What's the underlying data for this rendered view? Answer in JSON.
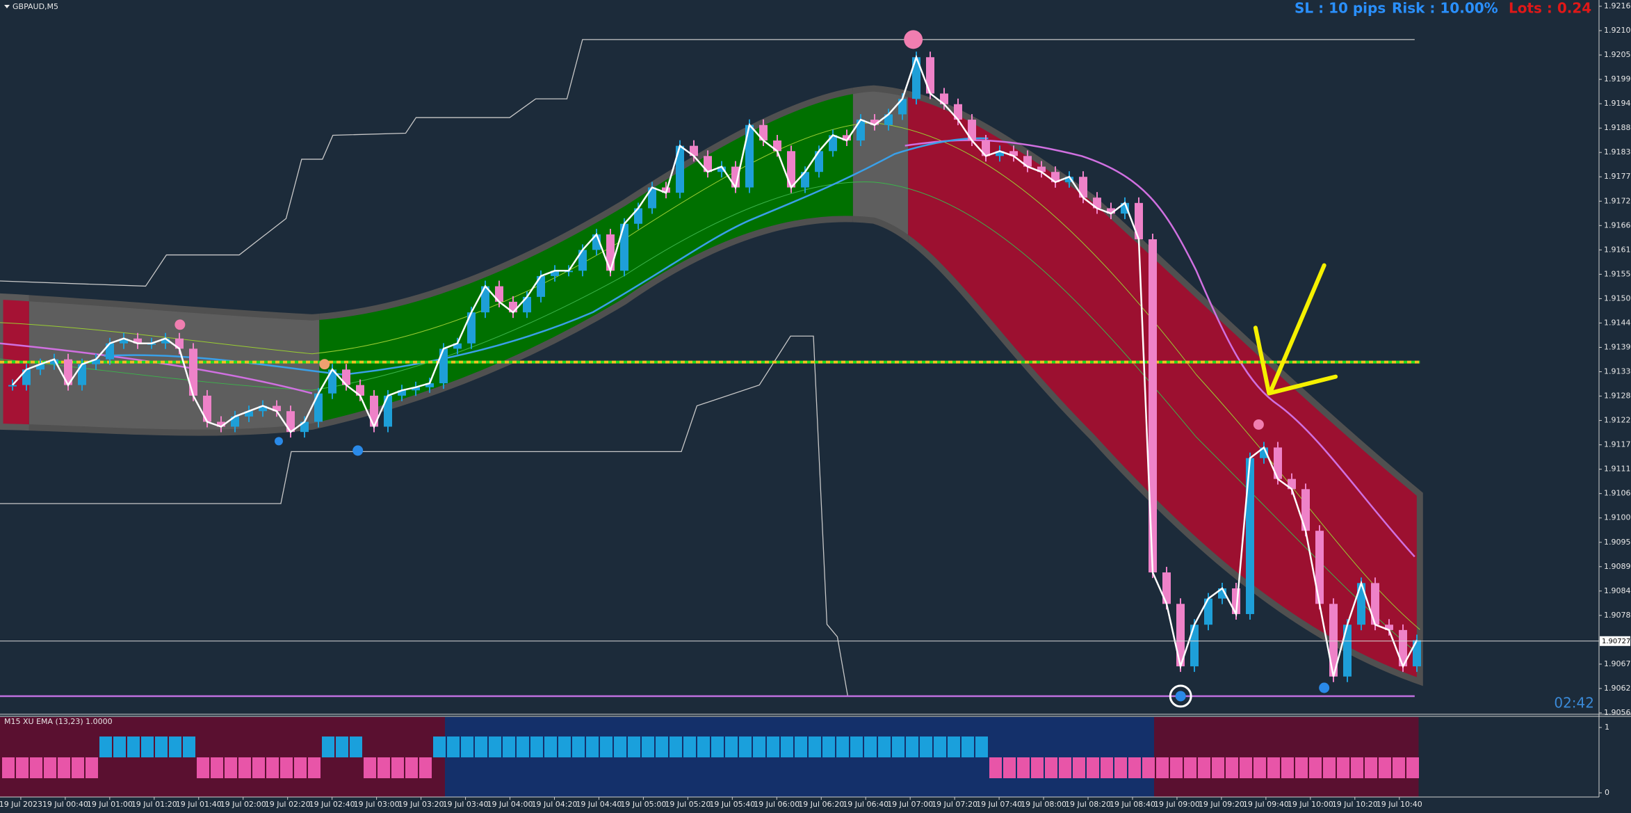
{
  "chart_data": {
    "type": "candlestick",
    "title": "GBPAUD,M5",
    "up_color": "#1e9fd8",
    "down_color": "#ee82c8",
    "values": [
      1.91305,
      1.9134,
      1.91352,
      1.91363,
      1.91305,
      1.91352,
      1.91363,
      1.91399,
      1.9141,
      1.91399,
      1.91399,
      1.9141,
      1.91387,
      1.91281,
      1.91222,
      1.91211,
      1.91234,
      1.91246,
      1.91258,
      1.91246,
      1.91199,
      1.91222,
      1.91286,
      1.9134,
      1.91305,
      1.91281,
      1.91211,
      1.91281,
      1.91293,
      1.913,
      1.91309,
      1.91387,
      1.91399,
      1.91469,
      1.91528,
      1.91493,
      1.91469,
      1.91504,
      1.91551,
      1.91563,
      1.91563,
      1.9161,
      1.91645,
      1.91563,
      1.91669,
      1.91704,
      1.91751,
      1.91739,
      1.91845,
      1.91822,
      1.91786,
      1.91798,
      1.91751,
      1.91892,
      1.91857,
      1.91833,
      1.91751,
      1.91786,
      1.91833,
      1.91869,
      1.91857,
      1.91904,
      1.91892,
      1.91916,
      1.91951,
      1.92045,
      1.91963,
      1.91939,
      1.91904,
      1.91857,
      1.91822,
      1.91833,
      1.91822,
      1.91798,
      1.91786,
      1.91763,
      1.91775,
      1.91728,
      1.91704,
      1.91692,
      1.91716,
      1.91634,
      1.90882,
      1.90811,
      1.9067,
      1.90764,
      1.90823,
      1.90846,
      1.90788,
      1.9114,
      1.91164,
      1.91093,
      1.9107,
      1.90976,
      1.90811,
      1.90647,
      1.90764,
      1.90858,
      1.90764,
      1.90752,
      1.9067,
      1.90729
    ],
    "ylim": [
      1.90565,
      1.9216
    ],
    "yticks": [
      {
        "value": 1.9216,
        "label": "1.92160"
      },
      {
        "value": 1.92105,
        "label": "1.92105"
      },
      {
        "value": 1.9205,
        "label": "1.92050"
      },
      {
        "value": 1.91995,
        "label": "1.91995"
      },
      {
        "value": 1.9194,
        "label": "1.91940"
      },
      {
        "value": 1.91885,
        "label": "1.91885"
      },
      {
        "value": 1.9183,
        "label": "1.91830"
      },
      {
        "value": 1.91775,
        "label": "1.91775"
      },
      {
        "value": 1.9172,
        "label": "1.91720"
      },
      {
        "value": 1.91665,
        "label": "1.91665"
      },
      {
        "value": 1.9161,
        "label": "1.91610"
      },
      {
        "value": 1.91555,
        "label": "1.91555"
      },
      {
        "value": 1.915,
        "label": "1.91500"
      },
      {
        "value": 1.91445,
        "label": "1.91445"
      },
      {
        "value": 1.9139,
        "label": "1.91390"
      },
      {
        "value": 1.91335,
        "label": "1.91335"
      },
      {
        "value": 1.9128,
        "label": "1.91280"
      },
      {
        "value": 1.91225,
        "label": "1.91225"
      },
      {
        "value": 1.9117,
        "label": "1.91170"
      },
      {
        "value": 1.91115,
        "label": "1.91115"
      },
      {
        "value": 1.9106,
        "label": "1.91060"
      },
      {
        "value": 1.91005,
        "label": "1.91005"
      },
      {
        "value": 1.9095,
        "label": "1.90950"
      },
      {
        "value": 1.90895,
        "label": "1.90895"
      },
      {
        "value": 1.9084,
        "label": "1.90840"
      },
      {
        "value": 1.90785,
        "label": "1.90785"
      },
      {
        "value": 1.90675,
        "label": "1.90675"
      },
      {
        "value": 1.9062,
        "label": "1.90620"
      },
      {
        "value": 1.90565,
        "label": "1.90565"
      }
    ],
    "current_price": 1.90727,
    "time_labels": [
      "19 Jul 2023",
      "19 Jul 00:40",
      "19 Jul 01:00",
      "19 Jul 01:20",
      "19 Jul 01:40",
      "19 Jul 02:00",
      "19 Jul 02:20",
      "19 Jul 02:40",
      "19 Jul 03:00",
      "19 Jul 03:20",
      "19 Jul 03:40",
      "19 Jul 04:00",
      "19 Jul 04:20",
      "19 Jul 04:40",
      "19 Jul 05:00",
      "19 Jul 05:20",
      "19 Jul 05:40",
      "19 Jul 06:00",
      "19 Jul 06:20",
      "19 Jul 06:40",
      "19 Jul 07:00",
      "19 Jul 07:20",
      "19 Jul 07:40",
      "19 Jul 08:00",
      "19 Jul 08:20",
      "19 Jul 08:40",
      "19 Jul 09:00",
      "19 Jul 09:20",
      "19 Jul 09:40",
      "19 Jul 10:00",
      "19 Jul 10:20",
      "19 Jul 10:40"
    ],
    "sl_text": "SL : 10 pips",
    "risk_text": "Risk : 10.00%",
    "lots_text": "Lots : 0.24",
    "timer": "02:42",
    "indicator": {
      "title": "M15 XU EMA (13,23) 1.0000",
      "yticks": [
        0,
        1
      ],
      "up_color": "#1aa0dc",
      "down_color": "#e855a8",
      "values": [
        0,
        0,
        0,
        0,
        0,
        0,
        0,
        1,
        1,
        1,
        1,
        1,
        1,
        1,
        0,
        0,
        0,
        0,
        0,
        0,
        0,
        0,
        0,
        1,
        1,
        1,
        0,
        0,
        0,
        0,
        0,
        1,
        1,
        1,
        1,
        1,
        1,
        1,
        1,
        1,
        1,
        1,
        1,
        1,
        1,
        1,
        1,
        1,
        1,
        1,
        1,
        1,
        1,
        1,
        1,
        1,
        1,
        1,
        1,
        1,
        1,
        1,
        1,
        1,
        1,
        1,
        1,
        1,
        1,
        1,
        1,
        0,
        0,
        0,
        0,
        0,
        0,
        0,
        0,
        0,
        0,
        0,
        0,
        0,
        0,
        0,
        0,
        0,
        0,
        0,
        0,
        0,
        0,
        0,
        0,
        0,
        0,
        0,
        0,
        0,
        0,
        0
      ]
    }
  }
}
